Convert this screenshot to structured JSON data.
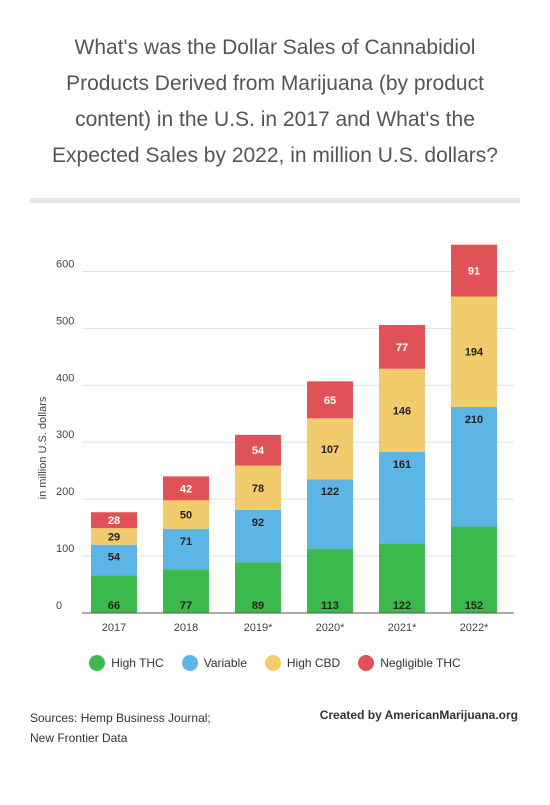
{
  "title": {
    "line1": "What's was the Dollar Sales of Cannabidiol",
    "line2": "Products Derived from Marijuana (by product",
    "line3": "content) in the U.S. in 2017 and What's the",
    "line4": "Expected Sales by 2022, in million U.S. dollars?"
  },
  "chart_data": {
    "type": "bar",
    "stacked": true,
    "categories": [
      "2017",
      "2018",
      "2019*",
      "2020*",
      "2021*",
      "2022*"
    ],
    "ylabel": "in million U.S. dollars",
    "ylim": [
      0,
      650
    ],
    "yticks": [
      0,
      100,
      200,
      300,
      400,
      500,
      600
    ],
    "grid": true,
    "legend_position": "bottom",
    "series": [
      {
        "name": "High THC",
        "color": "#3cb94d",
        "values": [
          66,
          77,
          89,
          113,
          122,
          152
        ]
      },
      {
        "name": "Variable",
        "color": "#5db5e5",
        "values": [
          54,
          71,
          92,
          122,
          161,
          210
        ]
      },
      {
        "name": "High CBD",
        "color": "#f2cb6c",
        "values": [
          29,
          50,
          78,
          107,
          146,
          194
        ]
      },
      {
        "name": "Negligible THC",
        "color": "#e05258",
        "values": [
          28,
          42,
          54,
          65,
          77,
          91
        ]
      }
    ]
  },
  "footer": {
    "sources_line1": "Sources: Hemp Business Journal;",
    "sources_line2": "New Frontier Data",
    "credit": "Created by AmericanMarijuana.org"
  }
}
